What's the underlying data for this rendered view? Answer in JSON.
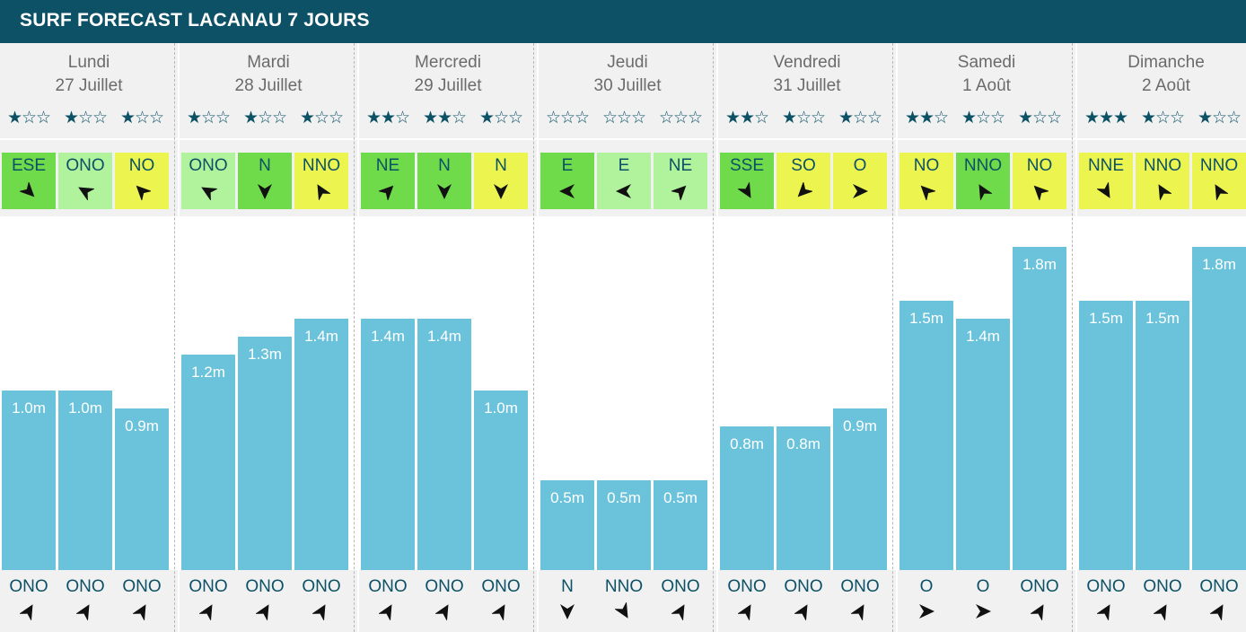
{
  "title": "SURF FORECAST LACANAU 7 JOURS",
  "colors": {
    "header": "#0c5166",
    "band": "#f1f1f1",
    "bar": "#6bc3db",
    "text_dark": "#0c5166",
    "date_text": "#6b6b6b",
    "wind_good": "#6fda4a",
    "wind_light": "#b1f29c",
    "wind_onshore": "#ecf54f"
  },
  "icons": {
    "star_filled": "★",
    "star_empty": "☆",
    "wind_arrow": "wind-direction-arrow-icon",
    "swell_arrow": "swell-direction-arrow-icon"
  },
  "chart_data": {
    "type": "bar",
    "title": "SURF FORECAST LACANAU 7 JOURS",
    "unit": "m",
    "ylim": [
      0,
      2.0
    ],
    "days": [
      {
        "name": "Lundi",
        "date": "27 Juillet",
        "slots": [
          {
            "stars": 1,
            "wind_dir": "ESE",
            "wind_color": "#6fda4a",
            "wind_deg": 135,
            "height": 1.0,
            "label": "1.0m",
            "swell_dir": "ONO",
            "swell_deg": 30
          },
          {
            "stars": 1,
            "wind_dir": "ONO",
            "wind_color": "#b1f29c",
            "wind_deg": -60,
            "height": 1.0,
            "label": "1.0m",
            "swell_dir": "ONO",
            "swell_deg": 30
          },
          {
            "stars": 1,
            "wind_dir": "NO",
            "wind_color": "#ecf54f",
            "wind_deg": -45,
            "height": 0.9,
            "label": "0.9m",
            "swell_dir": "ONO",
            "swell_deg": 30
          }
        ]
      },
      {
        "name": "Mardi",
        "date": "28 Juillet",
        "slots": [
          {
            "stars": 1,
            "wind_dir": "ONO",
            "wind_color": "#b1f29c",
            "wind_deg": -60,
            "height": 1.2,
            "label": "1.2m",
            "swell_dir": "ONO",
            "swell_deg": 30
          },
          {
            "stars": 1,
            "wind_dir": "N",
            "wind_color": "#6fda4a",
            "wind_deg": 180,
            "height": 1.3,
            "label": "1.3m",
            "swell_dir": "ONO",
            "swell_deg": 30
          },
          {
            "stars": 1,
            "wind_dir": "NNO",
            "wind_color": "#ecf54f",
            "wind_deg": -30,
            "height": 1.4,
            "label": "1.4m",
            "swell_dir": "ONO",
            "swell_deg": 30
          }
        ]
      },
      {
        "name": "Mercredi",
        "date": "29 Juillet",
        "slots": [
          {
            "stars": 2,
            "wind_dir": "NE",
            "wind_color": "#6fda4a",
            "wind_deg": 45,
            "height": 1.4,
            "label": "1.4m",
            "swell_dir": "ONO",
            "swell_deg": 30
          },
          {
            "stars": 2,
            "wind_dir": "N",
            "wind_color": "#6fda4a",
            "wind_deg": 180,
            "height": 1.4,
            "label": "1.4m",
            "swell_dir": "ONO",
            "swell_deg": 30
          },
          {
            "stars": 1,
            "wind_dir": "N",
            "wind_color": "#ecf54f",
            "wind_deg": 180,
            "height": 1.0,
            "label": "1.0m",
            "swell_dir": "ONO",
            "swell_deg": 30
          }
        ]
      },
      {
        "name": "Jeudi",
        "date": "30 Juillet",
        "slots": [
          {
            "stars": 0,
            "wind_dir": "E",
            "wind_color": "#6fda4a",
            "wind_deg": -90,
            "height": 0.5,
            "label": "0.5m",
            "swell_dir": "N",
            "swell_deg": 180
          },
          {
            "stars": 0,
            "wind_dir": "E",
            "wind_color": "#b1f29c",
            "wind_deg": -90,
            "height": 0.5,
            "label": "0.5m",
            "swell_dir": "NNO",
            "swell_deg": 150
          },
          {
            "stars": 0,
            "wind_dir": "NE",
            "wind_color": "#b1f29c",
            "wind_deg": 45,
            "height": 0.5,
            "label": "0.5m",
            "swell_dir": "ONO",
            "swell_deg": 30
          }
        ]
      },
      {
        "name": "Vendredi",
        "date": "31 Juillet",
        "slots": [
          {
            "stars": 2,
            "wind_dir": "SSE",
            "wind_color": "#6fda4a",
            "wind_deg": 150,
            "height": 0.8,
            "label": "0.8m",
            "swell_dir": "ONO",
            "swell_deg": 30
          },
          {
            "stars": 1,
            "wind_dir": "SO",
            "wind_color": "#ecf54f",
            "wind_deg": -135,
            "height": 0.8,
            "label": "0.8m",
            "swell_dir": "ONO",
            "swell_deg": 30
          },
          {
            "stars": 1,
            "wind_dir": "O",
            "wind_color": "#ecf54f",
            "wind_deg": 90,
            "height": 0.9,
            "label": "0.9m",
            "swell_dir": "ONO",
            "swell_deg": 30
          }
        ]
      },
      {
        "name": "Samedi",
        "date": "1 Août",
        "slots": [
          {
            "stars": 2,
            "wind_dir": "NO",
            "wind_color": "#ecf54f",
            "wind_deg": -45,
            "height": 1.5,
            "label": "1.5m",
            "swell_dir": "O",
            "swell_deg": 90
          },
          {
            "stars": 1,
            "wind_dir": "NNO",
            "wind_color": "#6fda4a",
            "wind_deg": -30,
            "height": 1.4,
            "label": "1.4m",
            "swell_dir": "O",
            "swell_deg": 90
          },
          {
            "stars": 1,
            "wind_dir": "NO",
            "wind_color": "#ecf54f",
            "wind_deg": -45,
            "height": 1.8,
            "label": "1.8m",
            "swell_dir": "ONO",
            "swell_deg": 30
          }
        ]
      },
      {
        "name": "Dimanche",
        "date": "2 Août",
        "slots": [
          {
            "stars": 3,
            "wind_dir": "NNE",
            "wind_color": "#ecf54f",
            "wind_deg": 150,
            "height": 1.5,
            "label": "1.5m",
            "swell_dir": "ONO",
            "swell_deg": 30
          },
          {
            "stars": 1,
            "wind_dir": "NNO",
            "wind_color": "#ecf54f",
            "wind_deg": -30,
            "height": 1.5,
            "label": "1.5m",
            "swell_dir": "ONO",
            "swell_deg": 30
          },
          {
            "stars": 1,
            "wind_dir": "NNO",
            "wind_color": "#ecf54f",
            "wind_deg": -30,
            "height": 1.8,
            "label": "1.8m",
            "swell_dir": "ONO",
            "swell_deg": 30
          }
        ]
      }
    ]
  }
}
